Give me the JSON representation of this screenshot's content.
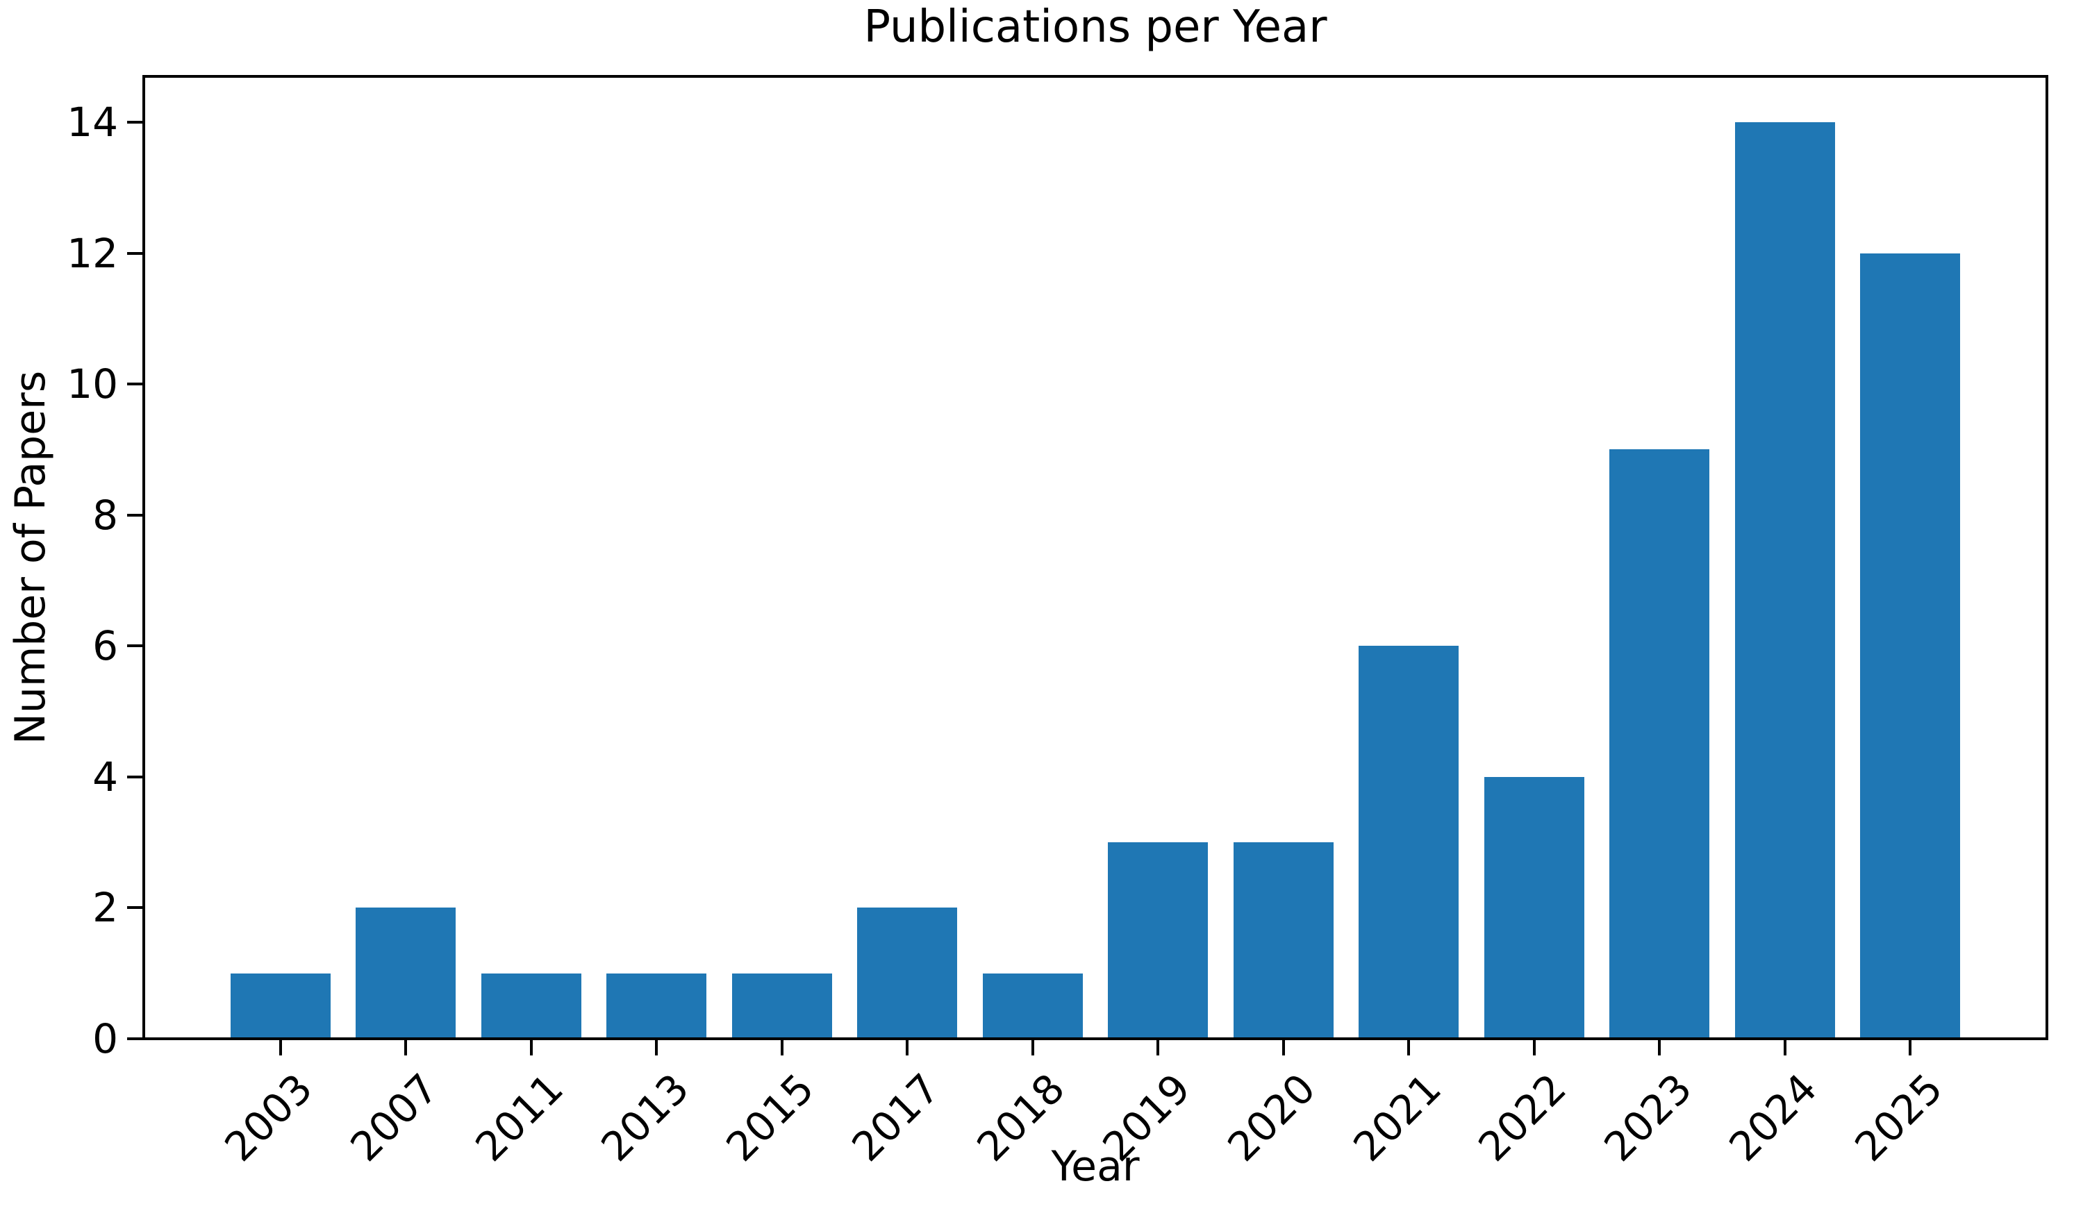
{
  "chart_data": {
    "type": "bar",
    "title": "Publications per Year",
    "xlabel": "Year",
    "ylabel": "Number of Papers",
    "categories": [
      "2003",
      "2007",
      "2011",
      "2013",
      "2015",
      "2017",
      "2018",
      "2019",
      "2020",
      "2021",
      "2022",
      "2023",
      "2024",
      "2025"
    ],
    "values": [
      1,
      2,
      1,
      1,
      1,
      2,
      1,
      3,
      3,
      6,
      4,
      9,
      14,
      12
    ],
    "yticks": [
      0,
      2,
      4,
      6,
      8,
      10,
      12,
      14
    ],
    "ylim": [
      0,
      14.7
    ],
    "bar_color": "#1f77b4",
    "axis_color": "#000000",
    "text_color": "#000000",
    "background_color": "#ffffff",
    "bar_width_fraction": 0.8,
    "xtick_rotation_deg": 45,
    "grid": false,
    "legend": null
  }
}
